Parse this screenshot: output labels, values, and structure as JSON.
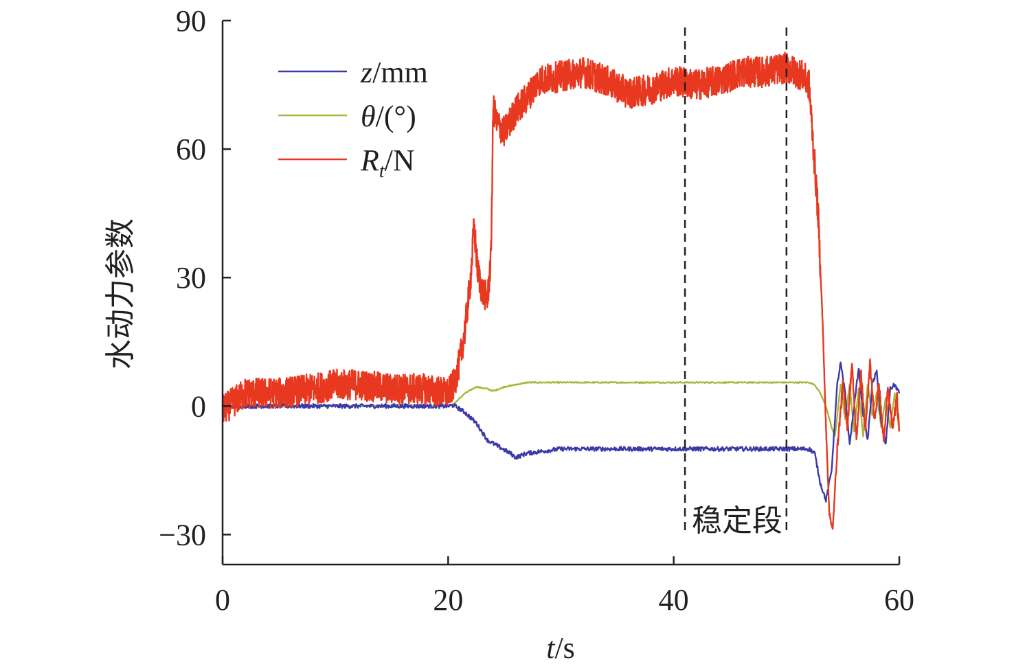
{
  "chart_data": {
    "type": "line",
    "xlabel_italic": "t",
    "xlabel_unit": "/s",
    "ylabel": "水动力参数",
    "xlim": [
      0,
      60
    ],
    "ylim": [
      -37,
      90
    ],
    "xticks": [
      0,
      20,
      40,
      60
    ],
    "yticks": [
      -30,
      0,
      30,
      60,
      90
    ],
    "xtick_labels": [
      "0",
      "20",
      "40",
      "60"
    ],
    "ytick_labels": [
      "−30",
      "0",
      "30",
      "60",
      "90"
    ],
    "legend_position": "top-left",
    "annotation": {
      "text": "稳定段",
      "x_start": 41,
      "x_end": 50
    },
    "series": [
      {
        "name": "z/mm",
        "legend_italic": "z",
        "legend_rest": "/mm",
        "color": "#3a3aa8",
        "noise": 0.5,
        "points": [
          [
            0,
            0
          ],
          [
            20,
            0
          ],
          [
            20.5,
            0.2
          ],
          [
            21.5,
            -1.5
          ],
          [
            22.5,
            -4
          ],
          [
            23.5,
            -8
          ],
          [
            24.5,
            -9.5
          ],
          [
            25.5,
            -11
          ],
          [
            26,
            -12
          ],
          [
            27,
            -11
          ],
          [
            30,
            -10
          ],
          [
            40,
            -10
          ],
          [
            50,
            -10
          ],
          [
            52,
            -10
          ],
          [
            52.5,
            -11
          ],
          [
            53,
            -18
          ],
          [
            53.5,
            -22
          ],
          [
            54,
            -15
          ],
          [
            54.5,
            5
          ],
          [
            54.8,
            10
          ],
          [
            55.2,
            3
          ],
          [
            55.6,
            -9
          ],
          [
            56,
            0
          ],
          [
            56.4,
            9
          ],
          [
            56.8,
            -2
          ],
          [
            57.2,
            -8
          ],
          [
            57.6,
            5
          ],
          [
            58,
            8
          ],
          [
            58.4,
            -4
          ],
          [
            58.8,
            -9
          ],
          [
            59.2,
            4
          ],
          [
            59.6,
            5
          ],
          [
            60,
            3
          ]
        ]
      },
      {
        "name": "θ/(°)",
        "legend_italic": "θ",
        "legend_rest": "/(°)",
        "color": "#a8b83a",
        "noise": 0.12,
        "points": [
          [
            0,
            0
          ],
          [
            20,
            0
          ],
          [
            20.5,
            0.5
          ],
          [
            21.5,
            3
          ],
          [
            22.5,
            4.5
          ],
          [
            23.5,
            4
          ],
          [
            24,
            3.5
          ],
          [
            25,
            4.5
          ],
          [
            27,
            5.5
          ],
          [
            30,
            5.5
          ],
          [
            40,
            5.5
          ],
          [
            50,
            5.5
          ],
          [
            52,
            5.5
          ],
          [
            52.5,
            5
          ],
          [
            53,
            3
          ],
          [
            53.5,
            0
          ],
          [
            54,
            -5
          ],
          [
            54.3,
            -7
          ],
          [
            54.8,
            5
          ],
          [
            55.2,
            -3
          ],
          [
            55.6,
            5
          ],
          [
            56,
            -6
          ],
          [
            56.4,
            4
          ],
          [
            56.8,
            -7
          ],
          [
            57.2,
            5
          ],
          [
            57.6,
            -2
          ],
          [
            58,
            3
          ],
          [
            58.4,
            -5
          ],
          [
            58.8,
            2
          ],
          [
            59.2,
            -5
          ],
          [
            59.6,
            3
          ],
          [
            60,
            -6
          ]
        ]
      },
      {
        "name": "R_t/N",
        "legend_italic": "R",
        "legend_sub": "t",
        "legend_rest": "/N",
        "color": "#e8381f",
        "noise": 3.6,
        "points": [
          [
            0,
            -1
          ],
          [
            2,
            3
          ],
          [
            5,
            3
          ],
          [
            8,
            4
          ],
          [
            10,
            5
          ],
          [
            12,
            5
          ],
          [
            15,
            4
          ],
          [
            18,
            4
          ],
          [
            20,
            3
          ],
          [
            20.5,
            5
          ],
          [
            21,
            10
          ],
          [
            21.5,
            18
          ],
          [
            22,
            30
          ],
          [
            22.3,
            42
          ],
          [
            22.6,
            32
          ],
          [
            23,
            27
          ],
          [
            23.5,
            25
          ],
          [
            23.8,
            35
          ],
          [
            24,
            70
          ],
          [
            24.3,
            66
          ],
          [
            25,
            64
          ],
          [
            26,
            69
          ],
          [
            27,
            72
          ],
          [
            28,
            76
          ],
          [
            30,
            77
          ],
          [
            32,
            78
          ],
          [
            34,
            76
          ],
          [
            36,
            73
          ],
          [
            38,
            74
          ],
          [
            40,
            76
          ],
          [
            42,
            75
          ],
          [
            44,
            76
          ],
          [
            46,
            78
          ],
          [
            48,
            78
          ],
          [
            50,
            79
          ],
          [
            51.5,
            77
          ],
          [
            52,
            75
          ],
          [
            52.4,
            60
          ],
          [
            52.8,
            45
          ],
          [
            53.2,
            20
          ],
          [
            53.5,
            -5
          ],
          [
            53.8,
            -25
          ],
          [
            54.1,
            -29
          ],
          [
            54.5,
            -10
          ],
          [
            55,
            5
          ],
          [
            55.4,
            -5
          ],
          [
            55.8,
            10
          ],
          [
            56.2,
            -8
          ],
          [
            56.6,
            8
          ],
          [
            57,
            -6
          ],
          [
            57.4,
            10
          ],
          [
            57.8,
            -3
          ],
          [
            58.2,
            5
          ],
          [
            58.6,
            -8
          ],
          [
            59,
            4
          ],
          [
            59.4,
            -5
          ],
          [
            59.8,
            2
          ],
          [
            60,
            -6
          ]
        ]
      }
    ]
  }
}
